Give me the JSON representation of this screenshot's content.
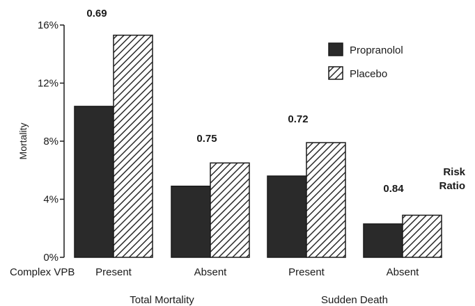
{
  "chart_data": {
    "type": "bar",
    "ylabel": "Mortality",
    "ylim": [
      0,
      16
    ],
    "yticks": [
      0,
      4,
      8,
      12,
      16
    ],
    "ytick_labels": [
      "0%",
      "4%",
      "8%",
      "12%",
      "16%"
    ],
    "row_label": "Complex VPB",
    "categories": [
      "Present",
      "Absent",
      "Present",
      "Absent"
    ],
    "groups": [
      {
        "label": "Total Mortality",
        "categories": [
          0,
          1
        ]
      },
      {
        "label": "Sudden Death",
        "categories": [
          2,
          3
        ]
      }
    ],
    "series": [
      {
        "name": "Propranolol",
        "values": [
          10.4,
          4.9,
          5.6,
          2.3
        ],
        "color": "#2a2a2a",
        "pattern": "solid"
      },
      {
        "name": "Placebo",
        "values": [
          15.3,
          6.5,
          7.9,
          2.9
        ],
        "color": "#2a2a2a",
        "pattern": "diagonal-hatch"
      }
    ],
    "annotations": [
      "0.69",
      "0.75",
      "0.72",
      "0.84"
    ],
    "annotation_title": "Risk Ratio",
    "legend_position": "top-right",
    "grid": false
  }
}
